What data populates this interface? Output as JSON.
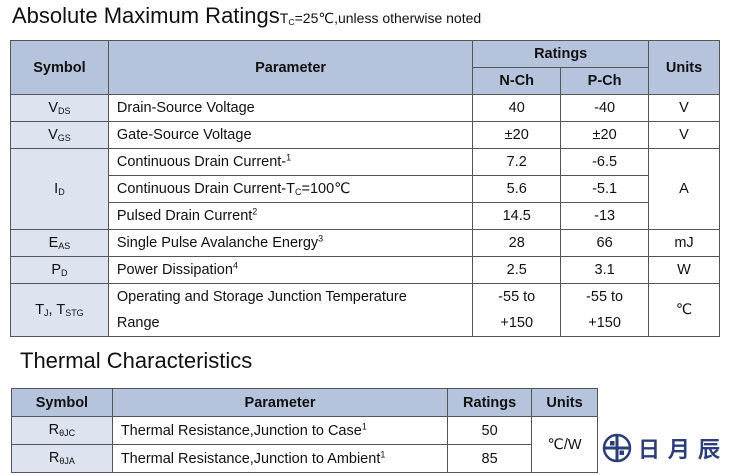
{
  "abs_title": "Absolute Maximum Ratings",
  "abs_note_t": "T",
  "abs_note_sub": "C",
  "abs_note_rest": "=25℃,unless otherwise noted",
  "abs_table": {
    "headers": {
      "symbol": "Symbol",
      "parameter": "Parameter",
      "ratings": "Ratings",
      "nch": "N-Ch",
      "pch": "P-Ch",
      "units": "Units"
    },
    "rows": [
      {
        "sym_main": "V",
        "sym_sub": "DS",
        "param": "Drain-Source Voltage",
        "sup": "",
        "n": "40",
        "p": "-40",
        "unit": "V"
      },
      {
        "sym_main": "V",
        "sym_sub": "GS",
        "param": "Gate-Source Voltage",
        "sup": "",
        "n": "±20",
        "p": "±20",
        "unit": "V"
      },
      {
        "sym_main": "I",
        "sym_sub": "D",
        "param": "Continuous Drain Current-",
        "sup": "1",
        "n": "7.2",
        "p": "-6.5",
        "unit": "A"
      },
      {
        "param": "Continuous Drain Current-T",
        "param_sub": "C",
        "param_rest": "=100℃",
        "n": "5.6",
        "p": "-5.1"
      },
      {
        "param": "Pulsed Drain Current",
        "sup": "2",
        "n": "14.5",
        "p": "-13"
      },
      {
        "sym_main": "E",
        "sym_sub": "AS",
        "param": "Single Pulse Avalanche Energy",
        "sup": "3",
        "n": "28",
        "p": "66",
        "unit": "mJ"
      },
      {
        "sym_main": "P",
        "sym_sub": "D",
        "param": "Power Dissipation",
        "sup": "4",
        "n": "2.5",
        "p": "3.1",
        "unit": "W"
      },
      {
        "sym_main": "T",
        "sym_sub": "J",
        "sym_mid": ", T",
        "sym_sub2": "STG",
        "param_l1": "Operating and Storage Junction Temperature",
        "param_l2": "Range",
        "n_l1": "-55 to",
        "n_l2": "+150",
        "p_l1": "-55 to",
        "p_l2": "+150",
        "unit": "℃"
      }
    ]
  },
  "thermal_title": "Thermal Characteristics",
  "thermal_table": {
    "headers": {
      "symbol": "Symbol",
      "parameter": "Parameter",
      "ratings": "Ratings",
      "units": "Units"
    },
    "rows": [
      {
        "sym_main": "R",
        "sym_sub": "θJC",
        "param": "Thermal Resistance,Junction to Case",
        "sup": "1",
        "value": "50"
      },
      {
        "sym_main": "R",
        "sym_sub": "θJA",
        "param": "Thermal Resistance,Junction to Ambient",
        "sup": "1",
        "value": "85"
      }
    ],
    "unit": "℃/W"
  },
  "logo": {
    "text": "日月辰",
    "icon": "globe-cross-icon",
    "color": "#2c3e7a"
  }
}
